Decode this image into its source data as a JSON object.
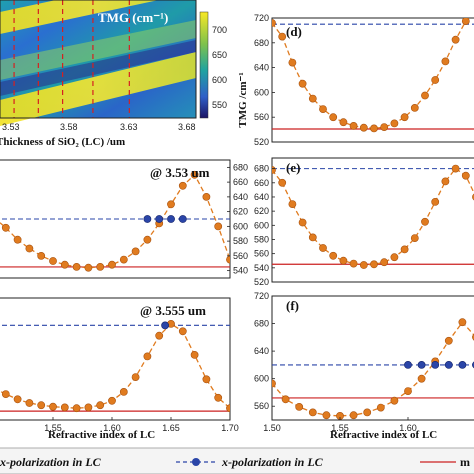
{
  "chart_data": [
    {
      "id": "heatmap",
      "type": "heatmap",
      "colorbar_title": "TMG (cm⁻¹)",
      "colorbar_ticks": [
        "700",
        "650",
        "600",
        "550"
      ],
      "x_ticks": [
        "3.53",
        "3.58",
        "3.63",
        "3.68"
      ],
      "xlabel": "Thickness  of SiO₂ (LC) /um",
      "zlim": [
        530,
        710
      ],
      "dashed_x": [
        3.535,
        3.555,
        3.575,
        3.6,
        3.63
      ]
    },
    {
      "id": "panel-b",
      "type": "line",
      "annotation": "@ 3.53 um",
      "xlim": [
        1.5,
        1.7
      ],
      "ylim": [
        530,
        690
      ],
      "y_ticks": [
        540,
        560,
        580,
        600,
        620,
        640,
        660,
        680
      ],
      "ref_blue": 610,
      "ref_red": 545,
      "series": [
        {
          "color": "#e07b1f",
          "x": [
            1.5,
            1.51,
            1.52,
            1.53,
            1.54,
            1.55,
            1.56,
            1.57,
            1.58,
            1.59,
            1.6,
            1.61,
            1.62,
            1.63,
            1.64,
            1.65,
            1.66,
            1.67,
            1.68,
            1.69,
            1.7
          ],
          "y": [
            612,
            598,
            582,
            570,
            560,
            553,
            548,
            545,
            544,
            545,
            548,
            555,
            566,
            582,
            604,
            630,
            655,
            670,
            640,
            600,
            555
          ]
        },
        {
          "color": "#2a45a8",
          "x": [
            1.5,
            1.63,
            1.64,
            1.65,
            1.66
          ],
          "y": [
            610,
            610,
            610,
            610,
            610
          ]
        }
      ]
    },
    {
      "id": "panel-c",
      "type": "line",
      "annotation": "@ 3.555 um",
      "x_ticks": [
        "1.55",
        "1.60",
        "1.65",
        "1.70"
      ],
      "xlim": [
        1.5,
        1.7
      ],
      "ylim": [
        540,
        705
      ],
      "ref_blue": 668,
      "ref_red": 552,
      "xlabel": "Refractive index of LC",
      "series": [
        {
          "color": "#e07b1f",
          "x": [
            1.5,
            1.51,
            1.52,
            1.53,
            1.54,
            1.55,
            1.56,
            1.57,
            1.58,
            1.59,
            1.6,
            1.61,
            1.62,
            1.63,
            1.64,
            1.65,
            1.66,
            1.67,
            1.68,
            1.69,
            1.7
          ],
          "y": [
            583,
            575,
            568,
            563,
            560,
            558,
            557,
            556,
            557,
            560,
            566,
            578,
            598,
            626,
            654,
            670,
            660,
            628,
            595,
            570,
            556
          ]
        },
        {
          "color": "#2a45a8",
          "x": [
            1.645
          ],
          "y": [
            668
          ]
        }
      ]
    },
    {
      "id": "panel-d",
      "type": "line",
      "panel_label": "(d)",
      "ylabel": "TMG /cm⁻¹",
      "xlim": [
        1.5,
        1.7
      ],
      "ylim": [
        520,
        720
      ],
      "y_ticks": [
        520,
        560,
        600,
        640,
        680,
        720
      ],
      "ref_blue": 710,
      "ref_red": 541,
      "series": [
        {
          "color": "#e07b1f",
          "x": [
            1.5,
            1.51,
            1.52,
            1.53,
            1.54,
            1.55,
            1.56,
            1.57,
            1.58,
            1.59,
            1.6,
            1.61,
            1.62,
            1.63,
            1.64,
            1.65,
            1.66,
            1.67,
            1.68,
            1.69,
            1.7
          ],
          "y": [
            712,
            690,
            648,
            614,
            590,
            573,
            560,
            552,
            546,
            543,
            542,
            544,
            550,
            560,
            575,
            595,
            620,
            650,
            685,
            715,
            735
          ]
        }
      ]
    },
    {
      "id": "panel-e",
      "type": "line",
      "panel_label": "(e)",
      "xlim": [
        1.5,
        1.7
      ],
      "ylim": [
        520,
        695
      ],
      "y_ticks": [
        520,
        540,
        560,
        580,
        600,
        620,
        640,
        660,
        680
      ],
      "ref_blue": 680,
      "ref_red": 545,
      "series": [
        {
          "color": "#e07b1f",
          "x": [
            1.5,
            1.51,
            1.52,
            1.53,
            1.54,
            1.55,
            1.56,
            1.57,
            1.58,
            1.59,
            1.6,
            1.61,
            1.62,
            1.63,
            1.64,
            1.65,
            1.66,
            1.67,
            1.68,
            1.69,
            1.7
          ],
          "y": [
            678,
            660,
            630,
            604,
            583,
            568,
            557,
            550,
            546,
            544,
            545,
            548,
            555,
            566,
            582,
            605,
            633,
            662,
            680,
            670,
            640
          ]
        }
      ]
    },
    {
      "id": "panel-f",
      "type": "line",
      "panel_label": "(f)",
      "x_ticks": [
        "1.50",
        "1.55",
        "1.60"
      ],
      "xlim": [
        1.5,
        1.65
      ],
      "ylim": [
        540,
        720
      ],
      "y_ticks": [
        560,
        600,
        640,
        680,
        720
      ],
      "ref_blue": 620,
      "ref_red": 572,
      "xlabel": "Refractive index of LC",
      "series": [
        {
          "color": "#e07b1f",
          "x": [
            1.5,
            1.51,
            1.52,
            1.53,
            1.54,
            1.55,
            1.56,
            1.57,
            1.58,
            1.59,
            1.6,
            1.61,
            1.62,
            1.63,
            1.64,
            1.65
          ],
          "y": [
            593,
            570,
            559,
            551,
            547,
            546,
            547,
            551,
            558,
            568,
            582,
            600,
            625,
            655,
            682,
            660
          ]
        },
        {
          "color": "#2a45a8",
          "x": [
            1.6,
            1.61,
            1.62,
            1.63,
            1.64,
            1.65
          ],
          "y": [
            620,
            620,
            620,
            620,
            620,
            620
          ]
        }
      ]
    }
  ],
  "legend": {
    "orange_label": "x-polarization in LC",
    "blue_label": "x-polarization in LC",
    "red_label": "m"
  }
}
